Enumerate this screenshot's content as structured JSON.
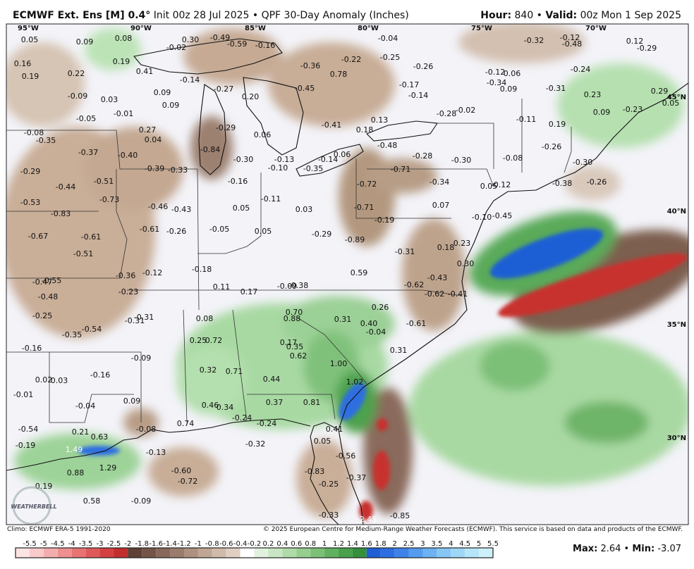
{
  "header": {
    "model": "ECMWF Ext. Ens [M]",
    "resolution": " 0.4°",
    "info": " Init 00z 28 Jul 2025 • QPF 30-Day Anomaly (Inches)",
    "hour_label": "Hour:",
    "hour": " 840 • ",
    "valid_label": "Valid:",
    "valid": " 00z Mon 1 Sep 2025"
  },
  "map": {
    "lon_labels": [
      "95°W",
      "90°W",
      "85°W",
      "80°W",
      "75°W",
      "70°W"
    ],
    "lat_labels": [
      "45°N",
      "40°N",
      "35°N",
      "30°N"
    ],
    "logo": "WEATHERBELL",
    "values": [
      "0.05",
      "0.09",
      "0.08",
      "0.30",
      "-0.49",
      "-0.02",
      "-0.59",
      "-0.16",
      "-0.04",
      "0.16",
      "0.19",
      "0.22",
      "0.19",
      "0.41",
      "-0.14",
      "-0.27",
      "0.20",
      "-0.36",
      "0.78",
      "-0.22",
      "-0.25",
      "-0.26",
      "-0.45",
      "-0.17",
      "-0.14",
      "-0.12",
      "0.06",
      "-0.34",
      "0.09",
      "-0.32",
      "-0.12",
      "-0.48",
      "0.12",
      "-0.29",
      "-0.24",
      "-0.31",
      "0.23",
      "0.29",
      "0.05",
      "-0.23",
      "0.09",
      "-0.09",
      "0.03",
      "0.09",
      "0.09",
      "-0.01",
      "-0.05",
      "-0.02",
      "-0.28",
      "-0.11",
      "0.19",
      "-0.08",
      "-0.35",
      "0.27",
      "0.04",
      "-0.29",
      "0.06",
      "-0.41",
      "0.18",
      "0.13",
      "-0.48",
      "-0.37",
      "-0.40",
      "-0.84",
      "-0.30",
      "-0.13",
      "-0.10",
      "-0.14",
      "0.06",
      "-0.35",
      "-0.28",
      "-0.30",
      "-0.08",
      "-0.26",
      "-0.30",
      "-0.29",
      "-0.39",
      "-0.33",
      "-0.71",
      "-0.44",
      "-0.51",
      "-0.16",
      "-0.72",
      "-0.34",
      "0.05",
      "-0.12",
      "-0.38",
      "-0.26",
      "-0.53",
      "-0.73",
      "-0.46",
      "-0.43",
      "-0.11",
      "0.05",
      "0.03",
      "-0.71",
      "0.07",
      "-0.83",
      "-0.61",
      "-0.26",
      "-0.05",
      "0.05",
      "-0.29",
      "-0.19",
      "-0.10",
      "-0.45",
      "-0.67",
      "-0.61",
      "-0.89",
      "0.23",
      "0.18",
      "-0.51",
      "-0.31",
      "0.30",
      "-0.36",
      "-0.12",
      "-0.18",
      "0.59",
      "-0.43",
      "-0.47",
      "-0.55",
      "-0.23",
      "0.11",
      "0.17",
      "-0.09",
      "-0.38",
      "-0.62",
      "-0.62",
      "-0.41",
      "-0.48",
      "0.26",
      "-0.25",
      "0.70",
      "0.88",
      "0.08",
      "-0.31",
      "-0.31",
      "0.31",
      "0.40",
      "-0.61",
      "-0.54",
      "-0.35",
      "-0.04",
      "0.25",
      "0.72",
      "0.17",
      "0.35",
      "0.31",
      "-0.16",
      "0.62",
      "-0.09",
      "1.00",
      "-0.16",
      "0.32",
      "0.71",
      "0.02",
      "0.03",
      "0.44",
      "1.02",
      "-0.01",
      "0.09",
      "-0.04",
      "0.46",
      "0.34",
      "0.37",
      "0.81",
      "-0.24",
      "-0.24",
      "0.74",
      "-0.54",
      "-0.08",
      "0.41",
      "0.21",
      "0.63",
      "-0.32",
      "0.05",
      "-0.19",
      "1.49",
      "-0.13",
      "-0.56",
      "1.29",
      "-0.60",
      "-0.83",
      "0.88",
      "-0.72",
      "-0.37",
      "-0.25",
      "0.19",
      "0.58",
      "-0.09",
      "-0.33",
      "-2.45",
      "-0.85"
    ]
  },
  "footer": {
    "climo": "Climo: ECMWF ERA-5 1991-2020",
    "credit": "© 2025 European Centre for Medium-Range Weather Forecasts (ECMWF). This service is based on data and products of the ECMWF.",
    "max_label": "Max:",
    "max": " 2.64 • ",
    "min_label": "Min:",
    "min": " -3.07"
  },
  "colorbar": {
    "labels": [
      "-5.5",
      "-5",
      "-4.5",
      "-4",
      "-3.5",
      "-3",
      "-2.5",
      "-2",
      "-1.8",
      "-1.6",
      "-1.4",
      "-1.2",
      "-1",
      "-0.8",
      "-0.6",
      "-0.4",
      "-0.2",
      "0.2",
      "0.4",
      "0.6",
      "0.8",
      "1",
      "1.2",
      "1.4",
      "1.6",
      "1.8",
      "2",
      "2.5",
      "3",
      "3.5",
      "4",
      "4.5",
      "5",
      "5.5"
    ],
    "colors": [
      "#fde4e4",
      "#f9caca",
      "#f4adad",
      "#ee9090",
      "#e77373",
      "#de5a5a",
      "#d24040",
      "#c22d2d",
      "#5e4034",
      "#735447",
      "#87685a",
      "#9a7c6d",
      "#ad9080",
      "#bfa594",
      "#d0baa9",
      "#dfcfc2",
      "#ffffff",
      "#e0f1dd",
      "#c8e6c3",
      "#afdba9",
      "#95ce8f",
      "#7bc076",
      "#62b160",
      "#4aa14c",
      "#35903c",
      "#1f5ed4",
      "#2d6ee0",
      "#3f83e8",
      "#559bee",
      "#6db2f2",
      "#86c6f4",
      "#9ed7f6",
      "#b6e5f8",
      "#cdf0fa"
    ]
  }
}
